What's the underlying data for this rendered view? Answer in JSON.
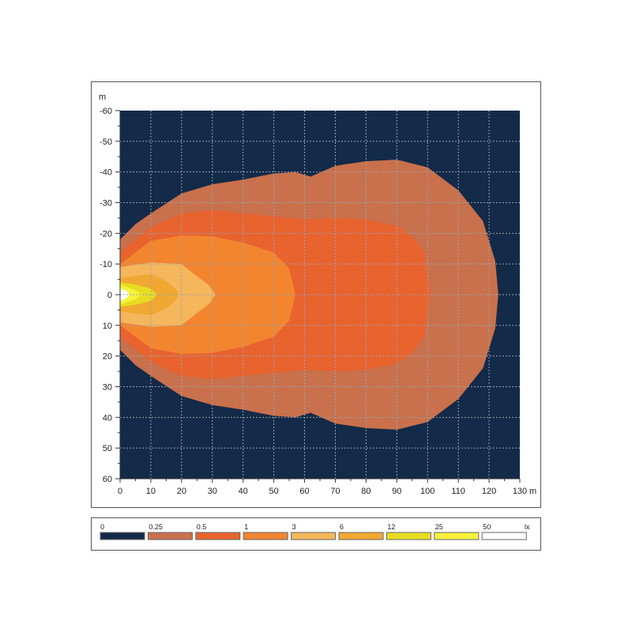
{
  "chart_data": {
    "type": "heatmap",
    "x_unit": "m",
    "y_unit": "m",
    "xlim": [
      0,
      130
    ],
    "ylim": [
      -60,
      60
    ],
    "x_ticks": [
      0,
      10,
      20,
      30,
      40,
      50,
      60,
      70,
      80,
      90,
      100,
      110,
      120,
      130
    ],
    "y_ticks": [
      -60,
      -50,
      -40,
      -30,
      -20,
      -10,
      0,
      10,
      20,
      30,
      40,
      50,
      60
    ],
    "grid": true,
    "background_color": "#132a48",
    "legend": {
      "placement": "bottom",
      "unit": "lx",
      "levels": [
        {
          "label": "0",
          "color": "#132a48"
        },
        {
          "label": "0.25",
          "color": "#c9704c"
        },
        {
          "label": "0.5",
          "color": "#e8632e"
        },
        {
          "label": "1",
          "color": "#f3852f"
        },
        {
          "label": "3",
          "color": "#f5b65c"
        },
        {
          "label": "6",
          "color": "#f1a832"
        },
        {
          "label": "12",
          "color": "#e6dd22"
        },
        {
          "label": "25",
          "color": "#f7f23d"
        },
        {
          "label": "50",
          "color": "#ffffff"
        }
      ]
    },
    "contours": [
      {
        "level": "0.25",
        "color": "#c9704c",
        "outline_x_halfwidth": [
          [
            0,
            18
          ],
          [
            5,
            23
          ],
          [
            10,
            26.5
          ],
          [
            20,
            33
          ],
          [
            30,
            36
          ],
          [
            40,
            37.5
          ],
          [
            50,
            39.5
          ],
          [
            57,
            40
          ],
          [
            62,
            38.5
          ],
          [
            70,
            42
          ],
          [
            80,
            43.5
          ],
          [
            90,
            44
          ],
          [
            100,
            41.5
          ],
          [
            110,
            34
          ],
          [
            118,
            24
          ],
          [
            122,
            11
          ],
          [
            123,
            0
          ]
        ]
      },
      {
        "level": "0.5",
        "color": "#e8632e",
        "outline_x_halfwidth": [
          [
            0,
            13.7
          ],
          [
            10,
            22
          ],
          [
            20,
            26.5
          ],
          [
            30,
            27.5
          ],
          [
            40,
            26.5
          ],
          [
            55,
            25
          ],
          [
            60,
            24.5
          ],
          [
            70,
            25
          ],
          [
            80,
            24.5
          ],
          [
            90,
            22.5
          ],
          [
            95,
            19
          ],
          [
            99,
            13.7
          ],
          [
            101,
            0
          ]
        ]
      },
      {
        "level": "1",
        "color": "#f3852f",
        "outline_x_halfwidth": [
          [
            0,
            10
          ],
          [
            10,
            17.5
          ],
          [
            20,
            19.3
          ],
          [
            30,
            19
          ],
          [
            40,
            17
          ],
          [
            50,
            13.7
          ],
          [
            55,
            8.5
          ],
          [
            57,
            0
          ]
        ]
      },
      {
        "level": "3",
        "color": "#f5b65c",
        "outline_x_halfwidth": [
          [
            0,
            9
          ],
          [
            10,
            10.5
          ],
          [
            20,
            10
          ],
          [
            25,
            6
          ],
          [
            29,
            3
          ],
          [
            31,
            0
          ]
        ]
      },
      {
        "level": "6",
        "color": "#f1a832",
        "outline_x_halfwidth": [
          [
            0,
            5.5
          ],
          [
            10,
            6.7
          ],
          [
            15,
            4.5
          ],
          [
            18,
            2
          ],
          [
            19,
            0
          ]
        ]
      },
      {
        "level": "12",
        "color": "#e6dd22",
        "outline_x_halfwidth": [
          [
            0,
            4
          ],
          [
            5,
            3.3
          ],
          [
            10,
            2
          ],
          [
            12,
            0
          ]
        ]
      },
      {
        "level": "25",
        "color": "#f7f23d",
        "outline_x_halfwidth": [
          [
            0,
            3.3
          ],
          [
            5,
            1.5
          ],
          [
            7,
            0
          ]
        ]
      },
      {
        "level": "50",
        "color": "#ffffff",
        "outline_x_halfwidth": [
          [
            0,
            2
          ],
          [
            2,
            1.3
          ],
          [
            3,
            0
          ]
        ]
      }
    ]
  }
}
